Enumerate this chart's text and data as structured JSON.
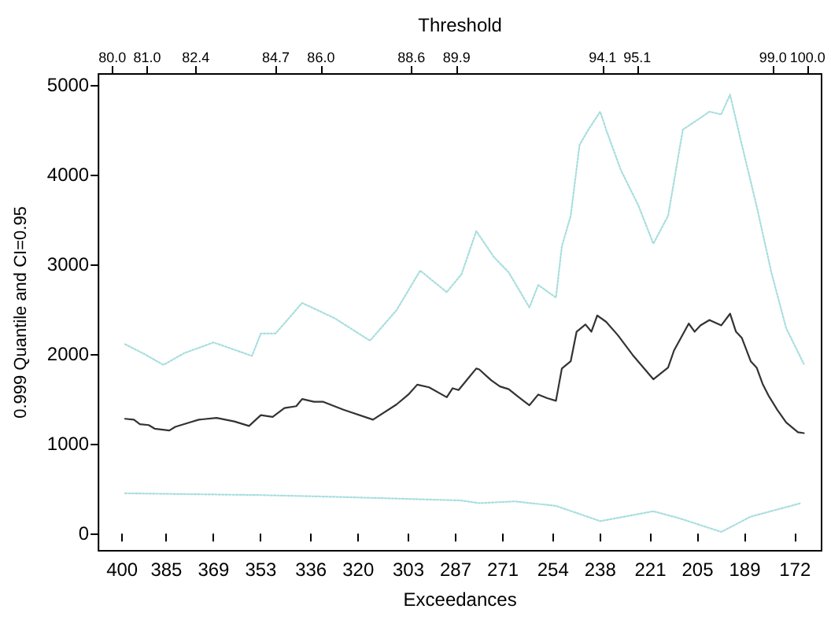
{
  "chart_data": {
    "type": "line",
    "xlabel": "Exceedances",
    "ylabel": "0.999 Quantile and CI=0.95",
    "x2label": "Threshold",
    "xlim": [
      408,
      163
    ],
    "xticks": [
      400,
      385,
      369,
      353,
      336,
      320,
      303,
      287,
      271,
      254,
      238,
      221,
      205,
      189,
      172
    ],
    "x2lim": [
      79.6,
      100.4
    ],
    "x2ticks": [
      {
        "value": 80,
        "label": "80.0"
      },
      {
        "value": 81,
        "label": "81.0"
      },
      82.4,
      84.7,
      {
        "value": 86,
        "label": "86.0"
      },
      88.6,
      89.9,
      94.1,
      95.1,
      {
        "value": 99,
        "label": "99.0"
      },
      {
        "value": 100,
        "label": "100.0"
      }
    ],
    "ylim": [
      -190,
      5120
    ],
    "yticks": [
      0,
      1000,
      2000,
      3000,
      4000,
      5000
    ],
    "grid": false,
    "marker": "none",
    "series": [
      {
        "color": "#333333",
        "line_style": "solid",
        "x": [
          399,
          396,
          394,
          391,
          389,
          384,
          382,
          377,
          374,
          368,
          362,
          357,
          353,
          349,
          345,
          341,
          339,
          335,
          332,
          325,
          315,
          307,
          303,
          300,
          296,
          290,
          288,
          286,
          283,
          280,
          279,
          275,
          272,
          269,
          266,
          262,
          259,
          256,
          253,
          251,
          248,
          246,
          243,
          241,
          239,
          236,
          232,
          227,
          220,
          215,
          213,
          208,
          206,
          204,
          201,
          197,
          194,
          192,
          190,
          187,
          185,
          183,
          181,
          178,
          175,
          171,
          169
        ],
        "values": [
          1280,
          1270,
          1220,
          1210,
          1170,
          1150,
          1190,
          1240,
          1270,
          1290,
          1250,
          1200,
          1320,
          1300,
          1400,
          1420,
          1500,
          1470,
          1470,
          1380,
          1270,
          1440,
          1550,
          1660,
          1630,
          1520,
          1620,
          1600,
          1720,
          1840,
          1830,
          1710,
          1640,
          1610,
          1530,
          1430,
          1550,
          1510,
          1480,
          1840,
          1920,
          2250,
          2330,
          2250,
          2430,
          2360,
          2210,
          1990,
          1720,
          1850,
          2040,
          2340,
          2250,
          2320,
          2380,
          2320,
          2450,
          2250,
          2180,
          1920,
          1850,
          1670,
          1540,
          1380,
          1240,
          1130,
          1120
        ]
      },
      {
        "color": "#a8dede",
        "line_style": "dotted",
        "x": [
          399,
          393,
          386,
          379,
          369,
          356,
          353,
          348,
          339,
          328,
          316,
          307,
          299,
          290,
          285,
          280,
          274,
          269,
          262,
          259,
          253,
          251,
          248,
          245,
          242,
          238,
          236,
          231,
          225,
          220,
          215,
          210,
          205,
          201,
          197,
          194,
          190,
          185,
          180,
          175,
          169
        ],
        "values": [
          2110,
          2010,
          1880,
          2010,
          2130,
          1980,
          2230,
          2230,
          2570,
          2400,
          2150,
          2490,
          2930,
          2690,
          2890,
          3370,
          3080,
          2910,
          2520,
          2770,
          2630,
          3200,
          3540,
          4330,
          4500,
          4700,
          4500,
          4050,
          3650,
          3230,
          3540,
          4500,
          4610,
          4700,
          4670,
          4890,
          4330,
          3650,
          2910,
          2290,
          1890
        ]
      },
      {
        "color": "#a8dede",
        "line_style": "dotted",
        "x": [
          399,
          353,
          327,
          285,
          279,
          267,
          253,
          238,
          220,
          211,
          197,
          187,
          170
        ],
        "values": [
          450,
          430,
          410,
          370,
          340,
          360,
          310,
          140,
          250,
          170,
          20,
          190,
          340
        ]
      }
    ]
  }
}
